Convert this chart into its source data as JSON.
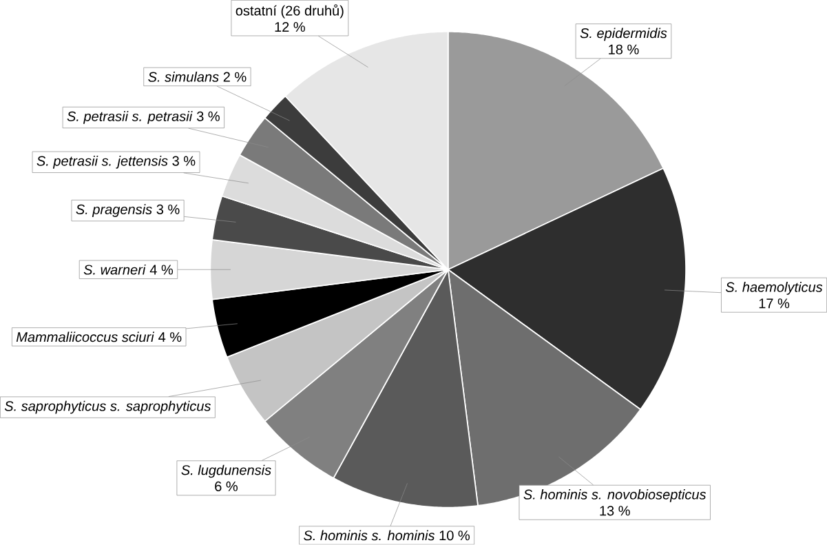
{
  "chart_data": {
    "type": "pie",
    "categories": [
      "*S. epidermidis*",
      "*S. haemolyticus*",
      "*S. hominis s. novobiosepticus*",
      "*S. hominis s. hominis*",
      "*S. lugdunensis*",
      "*S. saprophyticus s. saprophyticus*",
      "*Mammaliicoccus sciuri*",
      "*S. warneri*",
      "*S. pragensis*",
      "*S. petrasii s. jettensis*",
      "*S. petrasii s. petrasii*",
      "*S. simulans*",
      "ostatní (26 druhů)"
    ],
    "values": [
      18,
      17,
      13,
      10,
      6,
      5,
      4,
      4,
      3,
      3,
      3,
      2,
      12
    ],
    "value_labels": [
      "18 %",
      "17 %",
      "13 %",
      "10 %",
      "6 %",
      null,
      "4 %",
      "4 %",
      "3 %",
      "3 %",
      "3 %",
      "2 %",
      "12 %"
    ],
    "colors": [
      "#9a9a9a",
      "#2e2e2e",
      "#6e6e6e",
      "#5a5a5a",
      "#808080",
      "#c4c4c4",
      "#000000",
      "#d6d6d6",
      "#4a4a4a",
      "#dcdcdc",
      "#7a7a7a",
      "#3c3c3c",
      "#e6e6e6"
    ]
  }
}
